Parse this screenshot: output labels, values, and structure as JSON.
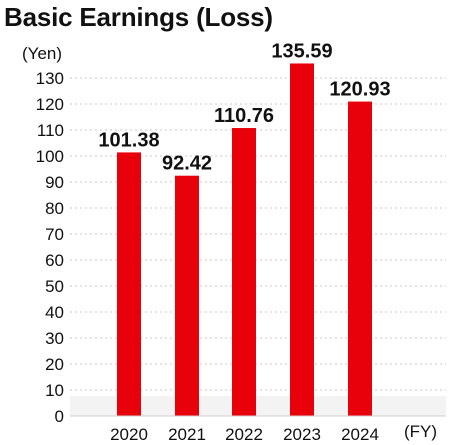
{
  "chart_data": {
    "type": "bar",
    "title": "Basic Earnings (Loss)",
    "ylabel": "(Yen)",
    "xlabel": "(FY)",
    "categories": [
      "2020",
      "2021",
      "2022",
      "2023",
      "2024"
    ],
    "values": [
      101.38,
      92.42,
      110.76,
      135.59,
      120.93
    ],
    "data_labels": [
      "101.38",
      "92.42",
      "110.76",
      "135.59",
      "120.93"
    ],
    "ylim": [
      0,
      140
    ],
    "yticks": [
      0,
      10,
      20,
      30,
      40,
      50,
      60,
      70,
      80,
      90,
      100,
      110,
      120,
      130
    ],
    "grid": true,
    "bar_color": "#e8000b"
  }
}
